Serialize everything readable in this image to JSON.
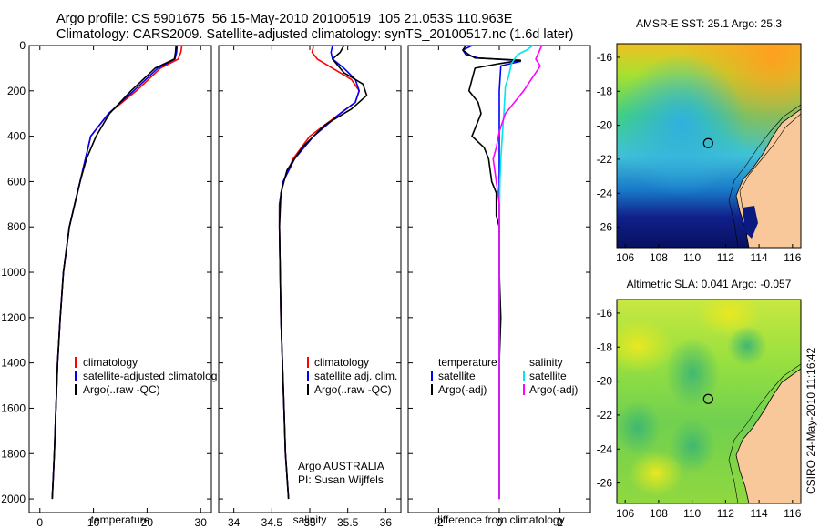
{
  "header": {
    "line1": "Argo profile: CS 5901675_56 15-May-2010 20100519_105 21.053S 110.963E",
    "line2": "Climatology: CARS2009. Satellite-adjusted climatology: synTS_20100517.nc (1.6d later)"
  },
  "colors": {
    "climatology": "#ff0000",
    "satellite": "#0000ff",
    "argo": "#000000",
    "sat_diff_salinity": "#00e5ee",
    "argo_diff_salinity": "#ff00ff"
  },
  "chart_data": [
    {
      "type": "line",
      "title": "",
      "xlabel": "temperature",
      "ylabel": "",
      "xlim": [
        -2,
        32
      ],
      "ylim": [
        2060,
        0
      ],
      "xticks": [
        0,
        10,
        20,
        30
      ],
      "yticks": [
        0,
        200,
        400,
        600,
        800,
        1000,
        1200,
        1400,
        1600,
        1800,
        2000
      ],
      "series": [
        {
          "name": "climatology",
          "color": "#ff0000",
          "x": [
            26.5,
            26.3,
            25.8,
            22.5,
            18,
            12.8,
            9.5,
            7.5,
            5.5,
            4.4,
            3.8,
            3.3,
            3.0,
            2.7,
            2.5,
            2.3
          ],
          "y": [
            0,
            30,
            60,
            100,
            200,
            300,
            400,
            600,
            800,
            1000,
            1200,
            1400,
            1600,
            1800,
            1900,
            2000
          ]
        },
        {
          "name": "satellite-adjusted climatology",
          "color": "#0000ff",
          "x": [
            25.6,
            25.5,
            25.2,
            22.0,
            17.5,
            12.8,
            9.5,
            7.5,
            5.5,
            4.4,
            3.8,
            3.3,
            3.0,
            2.7,
            2.5,
            2.3
          ],
          "y": [
            0,
            30,
            60,
            100,
            200,
            300,
            400,
            600,
            800,
            1000,
            1200,
            1400,
            1600,
            1800,
            1900,
            2000
          ]
        },
        {
          "name": "Argo(..raw -QC)",
          "color": "#000000",
          "x": [
            25.4,
            25.3,
            25.1,
            21.5,
            17.0,
            13.0,
            10.5,
            8.7,
            7.5,
            5.5,
            4.4,
            3.8,
            3.3,
            3.0,
            2.7,
            2.5,
            2.3
          ],
          "y": [
            0,
            30,
            60,
            100,
            200,
            300,
            400,
            500,
            600,
            800,
            1000,
            1200,
            1400,
            1600,
            1800,
            1900,
            2000
          ]
        }
      ],
      "legend": [
        "climatology",
        "satellite-adjusted climatolog",
        "Argo(..raw -QC)"
      ]
    },
    {
      "type": "line",
      "xlabel": "salinity",
      "xlim": [
        33.8,
        36.2
      ],
      "ylim": [
        2060,
        0
      ],
      "xticks": [
        34,
        34.5,
        35,
        35.5,
        36
      ],
      "series": [
        {
          "name": "climatology",
          "color": "#ff0000",
          "x": [
            35.05,
            35.03,
            35.1,
            35.3,
            35.55,
            35.65,
            35.6,
            35.4,
            35.0,
            34.78,
            34.65,
            34.6,
            34.6,
            34.61,
            34.62,
            34.64,
            34.66,
            34.68,
            34.72
          ],
          "y": [
            0,
            30,
            60,
            100,
            150,
            200,
            250,
            300,
            400,
            500,
            600,
            700,
            800,
            1000,
            1200,
            1400,
            1600,
            1800,
            2000
          ]
        },
        {
          "name": "satellite adj. clim.",
          "color": "#0000ff",
          "x": [
            35.3,
            35.28,
            35.3,
            35.45,
            35.6,
            35.65,
            35.6,
            35.4,
            35.05,
            34.8,
            34.65,
            34.6,
            34.6,
            34.61,
            34.62,
            34.64,
            34.66,
            34.68,
            34.72
          ],
          "y": [
            0,
            30,
            60,
            100,
            150,
            200,
            250,
            300,
            400,
            500,
            600,
            700,
            800,
            1000,
            1200,
            1400,
            1600,
            1800,
            2000
          ]
        },
        {
          "name": "Argo(..raw -QC)",
          "color": "#000000",
          "x": [
            35.45,
            35.4,
            35.3,
            35.45,
            35.7,
            35.75,
            35.55,
            35.2,
            34.9,
            34.7,
            34.62,
            34.6,
            34.61,
            34.62,
            34.64,
            34.66,
            34.68,
            34.72
          ],
          "y": [
            0,
            30,
            60,
            120,
            170,
            220,
            280,
            350,
            450,
            550,
            650,
            800,
            1000,
            1200,
            1400,
            1600,
            1800,
            2000
          ]
        }
      ],
      "legend": [
        "climatology",
        "satellite adj. clim.",
        "Argo(..raw -QC)"
      ],
      "annotation": [
        "Argo AUSTRALIA",
        "PI: Susan Wijffels"
      ]
    },
    {
      "type": "line",
      "xlabel": "difference from climatology",
      "xlim": [
        -3,
        3
      ],
      "ylim": [
        2060,
        0
      ],
      "xticks": [
        -2,
        0,
        2
      ],
      "series": [
        {
          "name": "temperature satellite",
          "color": "#0000ff",
          "x": [
            -0.9,
            -1.2,
            -1.1,
            -0.7,
            0.5,
            0.7,
            0.05,
            0.0,
            0.0,
            0.0,
            0.0,
            0.0,
            0.0
          ],
          "y": [
            0,
            20,
            40,
            55,
            65,
            70,
            90,
            200,
            500,
            800,
            1200,
            1600,
            2000
          ]
        },
        {
          "name": "temperature Argo(-adj)",
          "color": "#000000",
          "x": [
            -1.1,
            -1.2,
            -1.0,
            -0.8,
            0.7,
            0.0,
            -0.8,
            -1.0,
            -0.7,
            -0.6,
            -0.9,
            -0.5,
            -0.35,
            -0.25,
            -0.1,
            -0.1,
            0.0,
            0.0,
            0.05,
            0.0,
            0.0,
            0.0
          ],
          "y": [
            0,
            20,
            40,
            55,
            65,
            80,
            100,
            200,
            250,
            300,
            400,
            450,
            500,
            600,
            650,
            750,
            800,
            1000,
            1200,
            1400,
            1600,
            2000
          ]
        },
        {
          "name": "salinity satellite",
          "color": "#00e5ee",
          "x": [
            1.1,
            0.9,
            0.6,
            0.4,
            0.3,
            0.2,
            0.15,
            0.1,
            0.05,
            0.02,
            0.0,
            0.0,
            0.0,
            0.0
          ],
          "y": [
            0,
            20,
            40,
            80,
            140,
            180,
            300,
            400,
            500,
            600,
            800,
            1200,
            1600,
            2000
          ]
        },
        {
          "name": "salinity Argo(-adj)",
          "color": "#ff00ff",
          "x": [
            1.4,
            1.3,
            1.2,
            1.35,
            1.2,
            1.0,
            0.8,
            0.5,
            0.2,
            0.0,
            -0.1,
            -0.2,
            -0.1,
            0.0,
            0.0,
            0.0,
            0.0
          ],
          "y": [
            0,
            30,
            60,
            90,
            120,
            160,
            200,
            250,
            300,
            380,
            450,
            500,
            600,
            700,
            1000,
            1400,
            2000
          ]
        }
      ],
      "legend": [
        "temperature",
        "satellite",
        "Argo(-adj)",
        "salinity",
        "satellite",
        "Argo(-adj)"
      ]
    },
    {
      "type": "heatmap",
      "title": "AMSR-E SST: 25.1 Argo: 25.3",
      "xticks": [
        106,
        108,
        110,
        112,
        114,
        116
      ],
      "yticks": [
        -16,
        -18,
        -20,
        -22,
        -24,
        -26
      ],
      "xlim": [
        105.5,
        116.5
      ],
      "ylim": [
        -27.2,
        -15.2
      ],
      "marker": [
        110.963,
        -21.053
      ]
    },
    {
      "type": "heatmap",
      "title": "Altimetric SLA: 0.041 Argo: -0.057",
      "xticks": [
        106,
        108,
        110,
        112,
        114,
        116
      ],
      "yticks": [
        -16,
        -18,
        -20,
        -22,
        -24,
        -26
      ],
      "xlim": [
        105.5,
        116.5
      ],
      "ylim": [
        -27.2,
        -15.2
      ],
      "marker": [
        110.963,
        -21.053
      ]
    }
  ],
  "legends": {
    "temp": [
      "climatology",
      "satellite-adjusted climatolog",
      "Argo(..raw -QC)"
    ],
    "sal": [
      "climatology",
      "satellite adj. clim.",
      "Argo(..raw -QC)"
    ],
    "diff_temp_header": "temperature",
    "diff_sal_header": "salinity",
    "diff_sat": "satellite",
    "diff_argo": "Argo(-adj)"
  },
  "annotation": {
    "line1": "Argo AUSTRALIA",
    "line2": "PI: Susan Wijffels"
  },
  "map_titles": {
    "sst": "AMSR-E SST: 25.1 Argo: 25.3",
    "sla": "Altimetric SLA: 0.041 Argo: -0.057"
  },
  "footer_stamp": "CSIRO 24-May-2010 11:16:42"
}
